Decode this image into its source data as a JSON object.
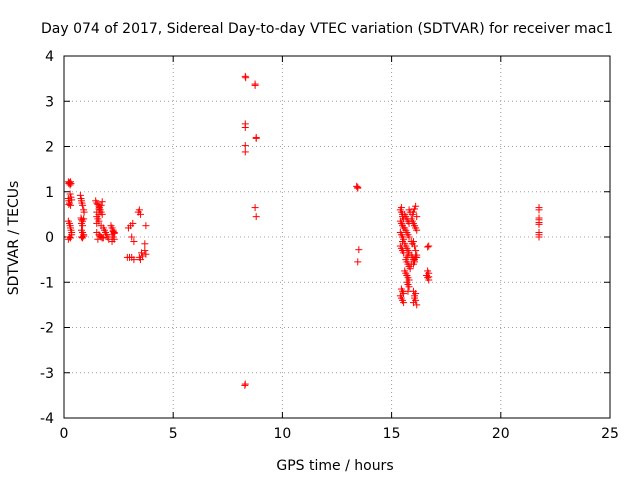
{
  "chart_data": {
    "type": "scatter",
    "title": "Day 074 of 2017, Sidereal Day-to-day VTEC variation (SDTVAR) for receiver mac1",
    "xlabel": "GPS time / hours",
    "ylabel": "SDTVAR / TECUs",
    "xlim": [
      0,
      25
    ],
    "ylim": [
      -4,
      4
    ],
    "xticks": [
      0,
      5,
      10,
      15,
      20,
      25
    ],
    "yticks": [
      -4,
      -3,
      -2,
      -1,
      0,
      1,
      2,
      3,
      4
    ],
    "grid": true,
    "marker": "+",
    "colors": {
      "points": "#ff0000",
      "grid": "#a0a0a0",
      "axis": "#000000"
    },
    "series": [
      {
        "name": "SDTVAR",
        "x": [
          0.2,
          0.22,
          0.25,
          0.28,
          0.3,
          0.32,
          0.2,
          0.22,
          0.25,
          0.3,
          0.32,
          0.35,
          0.2,
          0.25,
          0.28,
          0.3,
          0.32,
          0.35,
          0.2,
          0.25,
          0.3,
          0.35,
          0.22,
          0.28,
          0.75,
          0.78,
          0.8,
          0.82,
          0.85,
          0.9,
          0.92,
          0.78,
          0.8,
          0.85,
          0.9,
          0.8,
          0.85,
          0.9,
          0.8,
          0.85,
          0.9,
          0.8,
          0.85,
          1.45,
          1.5,
          1.55,
          1.6,
          1.62,
          1.65,
          1.7,
          1.75,
          1.5,
          1.55,
          1.6,
          1.65,
          1.7,
          1.75,
          1.5,
          1.6,
          1.7,
          1.75,
          1.55,
          1.65,
          1.5,
          1.6,
          1.7,
          1.8,
          1.85,
          1.9,
          1.95,
          2.0,
          2.05,
          1.5,
          1.6,
          1.8,
          2.15,
          2.2,
          2.25,
          2.3,
          2.2,
          2.25,
          2.3,
          2.2,
          2.3,
          2.25,
          2.9,
          3.0,
          3.1,
          3.05,
          3.15,
          3.2,
          2.95,
          3.1,
          3.2,
          3.4,
          3.45,
          3.5,
          3.45,
          3.5,
          3.55,
          3.6,
          3.7,
          3.75,
          3.7,
          3.75,
          8.3,
          8.3,
          8.3,
          8.3,
          8.3,
          8.3,
          8.28,
          8.32,
          8.75,
          8.75,
          8.8,
          8.8,
          8.75,
          8.8,
          13.4,
          13.45,
          13.45,
          13.5,
          13.45,
          15.4,
          15.45,
          15.5,
          15.5,
          15.55,
          15.4,
          15.45,
          15.5,
          15.55,
          15.4,
          15.45,
          15.5,
          15.55,
          15.4,
          15.45,
          15.5,
          15.55,
          15.45,
          15.5,
          15.55,
          15.4,
          15.45,
          15.5,
          15.55,
          15.45,
          15.5,
          15.6,
          15.65,
          15.7,
          15.75,
          15.8,
          15.6,
          15.65,
          15.7,
          15.75,
          15.8,
          15.6,
          15.65,
          15.7,
          15.75,
          15.8,
          15.65,
          15.7,
          15.75,
          15.8,
          15.6,
          15.65,
          15.7,
          15.75,
          15.8,
          15.7,
          15.75,
          15.8,
          15.85,
          15.9,
          15.7,
          15.75,
          15.8,
          15.85,
          15.9,
          15.7,
          15.75,
          15.9,
          15.95,
          16.0,
          16.05,
          16.1,
          16.15,
          15.9,
          15.95,
          16.0,
          16.05,
          16.1,
          16.15,
          15.95,
          16.0,
          16.05,
          16.1,
          16.15,
          15.95,
          16.0,
          16.05,
          16.1,
          16.15,
          16.0,
          16.05,
          16.1,
          16.15,
          16.0,
          16.05,
          16.1,
          16.0,
          16.05,
          16.1,
          16.65,
          16.7,
          16.65,
          16.7,
          16.6,
          16.65,
          16.7,
          16.7,
          21.75,
          21.75,
          21.75,
          21.75,
          21.75,
          21.75,
          21.75,
          21.75,
          21.75
        ],
        "y": [
          1.22,
          1.18,
          1.2,
          1.15,
          1.22,
          1.18,
          0.85,
          0.8,
          0.75,
          0.7,
          0.88,
          0.82,
          0.35,
          0.3,
          0.25,
          0.2,
          0.15,
          0.1,
          -0.05,
          0.0,
          -0.02,
          0.05,
          0.72,
          0.95,
          0.92,
          0.85,
          0.8,
          0.75,
          0.7,
          0.6,
          0.55,
          0.42,
          0.38,
          0.35,
          0.4,
          0.15,
          0.1,
          0.05,
          0.0,
          -0.02,
          0.02,
          0.3,
          0.25,
          0.8,
          0.75,
          0.72,
          0.68,
          0.65,
          0.6,
          0.55,
          0.5,
          0.45,
          0.4,
          0.5,
          0.6,
          0.7,
          0.78,
          0.1,
          0.05,
          0.0,
          -0.02,
          -0.05,
          0.02,
          0.3,
          0.35,
          0.25,
          0.2,
          0.15,
          0.1,
          0.05,
          0.0,
          -0.05,
          0.55,
          0.62,
          -0.02,
          0.25,
          0.2,
          0.15,
          0.1,
          0.05,
          0.0,
          -0.05,
          -0.1,
          0.08,
          0.12,
          -0.45,
          -0.45,
          -0.45,
          0.25,
          0.3,
          -0.5,
          0.2,
          0.0,
          -0.1,
          0.55,
          0.6,
          0.5,
          -0.45,
          -0.5,
          -0.35,
          -0.42,
          -0.3,
          -0.38,
          -0.15,
          0.25,
          3.55,
          2.5,
          2.42,
          2.02,
          1.88,
          -3.25,
          -3.28,
          3.52,
          3.38,
          3.35,
          2.2,
          2.18,
          0.65,
          0.45,
          1.12,
          1.1,
          1.08,
          -0.28,
          -0.55,
          0.6,
          0.55,
          0.5,
          0.45,
          0.4,
          0.35,
          0.3,
          0.25,
          0.2,
          0.1,
          0.05,
          0.0,
          -0.05,
          -0.2,
          -0.25,
          -0.3,
          -0.35,
          -1.15,
          -1.2,
          -1.25,
          -1.3,
          -1.35,
          -1.4,
          -1.45,
          0.65,
          -0.1,
          0.5,
          0.45,
          0.4,
          0.35,
          0.3,
          0.2,
          0.15,
          0.1,
          0.05,
          0.0,
          -0.15,
          -0.2,
          -0.25,
          -0.3,
          -0.35,
          -0.5,
          -0.55,
          -0.6,
          -0.65,
          -0.75,
          -0.8,
          -0.85,
          -0.9,
          -0.95,
          -1.0,
          -1.05,
          -1.1,
          -0.7,
          -0.6,
          -0.45,
          -0.4,
          0.6,
          0.55,
          -0.1,
          -0.85,
          -1.2,
          0.4,
          0.35,
          0.3,
          0.25,
          0.2,
          0.15,
          -0.4,
          -0.45,
          -0.5,
          -0.55,
          -0.45,
          -0.4,
          0.5,
          0.55,
          0.62,
          0.68,
          0.45,
          -0.15,
          -0.1,
          -0.2,
          -0.3,
          -0.45,
          -1.2,
          -1.3,
          -1.4,
          -1.5,
          -1.45,
          -1.35,
          -1.25,
          -0.6,
          -0.5,
          -0.45,
          -0.22,
          -0.2,
          -0.75,
          -0.8,
          -0.85,
          -0.9,
          -0.95,
          -0.88,
          0.65,
          0.6,
          0.42,
          0.38,
          0.32,
          0.28,
          0.1,
          0.05,
          0.0
        ]
      }
    ]
  }
}
